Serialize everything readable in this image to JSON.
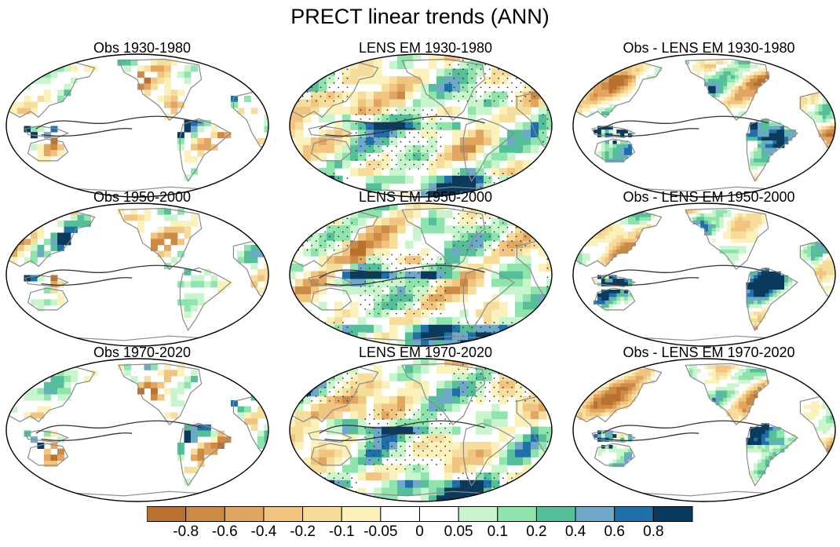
{
  "figure_title": "PRECT linear trends (ANN)",
  "chart_data": {
    "type": "heatmap",
    "title": "PRECT linear trends (ANN)",
    "panels": [
      {
        "title": "Obs 1930-1980",
        "kind": "obs"
      },
      {
        "title": "LENS EM 1930-1980",
        "kind": "lens"
      },
      {
        "title": "Obs - LENS EM 1930-1980",
        "kind": "diff"
      },
      {
        "title": "Obs 1950-2000",
        "kind": "obs"
      },
      {
        "title": "LENS EM 1950-2000",
        "kind": "lens"
      },
      {
        "title": "Obs - LENS EM 1950-2000",
        "kind": "diff"
      },
      {
        "title": "Obs 1970-2020",
        "kind": "obs"
      },
      {
        "title": "LENS EM 1970-2020",
        "kind": "lens"
      },
      {
        "title": "Obs - LENS EM 1970-2020",
        "kind": "diff"
      }
    ],
    "colorbar": {
      "levels": [
        "-0.8",
        "-0.6",
        "-0.4",
        "-0.2",
        "-0.1",
        "-0.05",
        "0",
        "0.05",
        "0.1",
        "0.2",
        "0.4",
        "0.6",
        "0.8"
      ],
      "colors": [
        "#b8712e",
        "#cc8a45",
        "#e0a662",
        "#f1c57f",
        "#f6dd9c",
        "#fbf1bb",
        "#ffffff",
        "#ffffff",
        "#c8f5cc",
        "#8fe3ad",
        "#55bf9a",
        "#6fa8c8",
        "#1f6fab",
        "#0a3a5c"
      ]
    }
  }
}
